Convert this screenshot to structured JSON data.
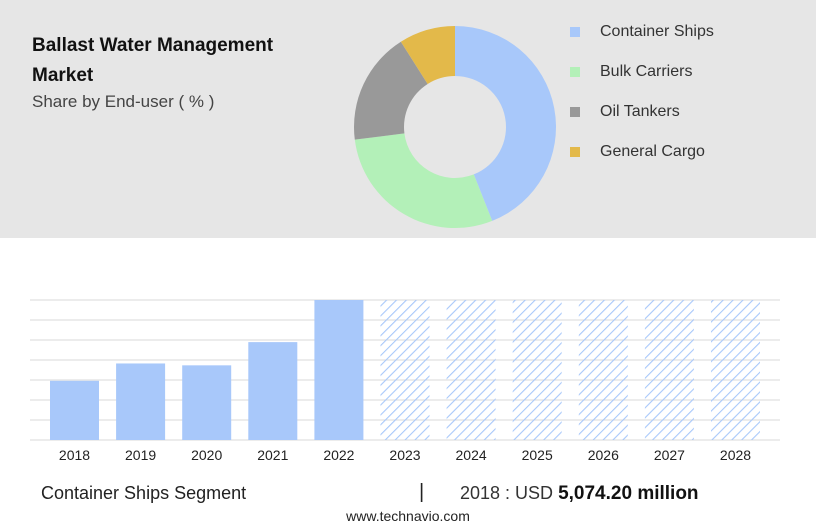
{
  "header": {
    "title": "Ballast Water Management Market",
    "subtitle": "Share by End-user ( % )"
  },
  "chart_data": [
    {
      "type": "pie",
      "variant": "donut",
      "title": "Share by End-user ( % )",
      "categories": [
        "Container Ships",
        "Bulk Carriers",
        "Oil Tankers",
        "General Cargo"
      ],
      "values": [
        44,
        29,
        18,
        9
      ],
      "colors": [
        "#a8c8fa",
        "#b3f0b8",
        "#999999",
        "#e3b94a"
      ],
      "legend_position": "right"
    },
    {
      "type": "bar",
      "categories": [
        "2018",
        "2019",
        "2020",
        "2021",
        "2022",
        "2023",
        "2024",
        "2025",
        "2026",
        "2027",
        "2028"
      ],
      "values": [
        5074.2,
        6560,
        6400,
        8390,
        12000,
        null,
        null,
        null,
        null,
        null,
        null
      ],
      "forecast_categories": [
        "2023",
        "2024",
        "2025",
        "2026",
        "2027",
        "2028"
      ],
      "forecast_style": "hatched",
      "bar_color": "#a8c8fa",
      "ylim": [
        0,
        12000
      ],
      "grid": true,
      "xlabel": "",
      "ylabel": ""
    }
  ],
  "footer": {
    "segment": "Container Ships Segment",
    "divider": "|",
    "stat_prefix": "2018 : USD",
    "stat_value": "5,074.20 million",
    "site": "www.technavio.com"
  }
}
